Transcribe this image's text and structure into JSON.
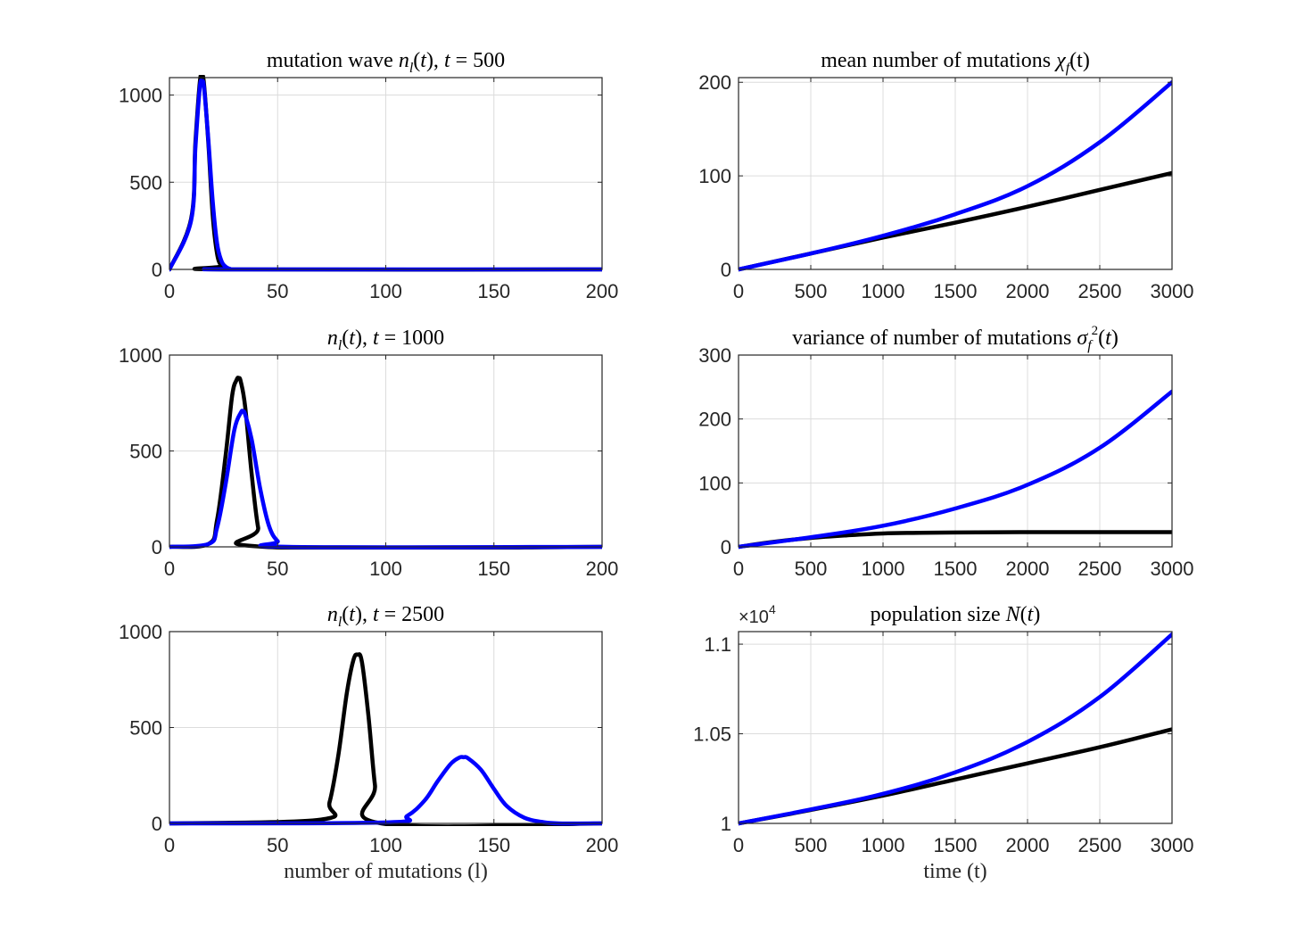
{
  "colors": {
    "series_a": "#000000",
    "series_b": "#0000ff"
  },
  "chart_data": [
    {
      "id": "wave500",
      "type": "line",
      "title_parts": [
        {
          "text": "mutation wave ",
          "style": "normal"
        },
        {
          "text": "n",
          "style": "italic"
        },
        {
          "text": "l",
          "style": "sub"
        },
        {
          "text": "(",
          "style": "normal"
        },
        {
          "text": "t",
          "style": "italic"
        },
        {
          "text": "), ",
          "style": "normal"
        },
        {
          "text": "t",
          "style": "italic"
        },
        {
          "text": " = 500",
          "style": "normal"
        }
      ],
      "xlabel": "",
      "xlim": [
        0,
        200
      ],
      "ylim": [
        0,
        1100
      ],
      "xticks": [
        0,
        50,
        100,
        150,
        200
      ],
      "xtick_labels": [
        "0",
        "50",
        "100",
        "150",
        "200"
      ],
      "yticks": [
        0,
        500,
        1000
      ],
      "ytick_labels": [
        "0",
        "500",
        "1000"
      ],
      "series": [
        {
          "name": "black",
          "color": "#000000",
          "x": [
            0,
            10,
            12,
            14,
            15,
            16,
            18,
            20,
            22,
            24,
            26,
            200
          ],
          "y": [
            0,
            290,
            730,
            1070,
            1110,
            1060,
            720,
            310,
            90,
            20,
            0,
            0
          ]
        },
        {
          "name": "blue",
          "color": "#0000ff",
          "x": [
            0,
            10,
            12,
            14,
            15,
            16,
            18,
            20,
            22,
            24,
            26,
            28,
            30,
            200
          ],
          "y": [
            0,
            280,
            700,
            1040,
            1075,
            1040,
            740,
            390,
            150,
            50,
            15,
            3,
            0,
            0
          ]
        }
      ]
    },
    {
      "id": "mean",
      "type": "line",
      "title_parts": [
        {
          "text": "mean number of mutations ",
          "style": "normal"
        },
        {
          "text": "χ",
          "style": "italic"
        },
        {
          "text": "f",
          "style": "sub"
        },
        {
          "text": "(t)",
          "style": "normal"
        }
      ],
      "xlabel": "",
      "xlim": [
        0,
        3000
      ],
      "ylim": [
        0,
        205
      ],
      "xticks": [
        0,
        500,
        1000,
        1500,
        2000,
        2500,
        3000
      ],
      "xtick_labels": [
        "0",
        "500",
        "1000",
        "1500",
        "2000",
        "2500",
        "3000"
      ],
      "yticks": [
        0,
        100,
        200
      ],
      "ytick_labels": [
        "0",
        "100",
        "200"
      ],
      "series": [
        {
          "name": "black",
          "color": "#000000",
          "x": [
            0,
            500,
            1000,
            1500,
            2000,
            2500,
            3000
          ],
          "y": [
            0,
            17,
            34,
            50,
            67,
            85,
            103
          ]
        },
        {
          "name": "blue",
          "color": "#0000ff",
          "x": [
            0,
            500,
            1000,
            1500,
            2000,
            2500,
            3000
          ],
          "y": [
            0,
            17,
            36,
            59,
            89,
            136,
            200
          ]
        }
      ]
    },
    {
      "id": "wave1000",
      "type": "line",
      "title_parts": [
        {
          "text": "n",
          "style": "italic"
        },
        {
          "text": "l",
          "style": "sub"
        },
        {
          "text": "(",
          "style": "normal"
        },
        {
          "text": "t",
          "style": "italic"
        },
        {
          "text": "), ",
          "style": "normal"
        },
        {
          "text": "t",
          "style": "italic"
        },
        {
          "text": " = 1000",
          "style": "normal"
        }
      ],
      "xlabel": "",
      "xlim": [
        0,
        200
      ],
      "ylim": [
        0,
        1000
      ],
      "xticks": [
        0,
        50,
        100,
        150,
        200
      ],
      "xtick_labels": [
        "0",
        "50",
        "100",
        "150",
        "200"
      ],
      "yticks": [
        0,
        500,
        1000
      ],
      "ytick_labels": [
        "0",
        "500",
        "1000"
      ],
      "series": [
        {
          "name": "black",
          "color": "#000000",
          "x": [
            0,
            18,
            22,
            26,
            29,
            31,
            32,
            33,
            35,
            38,
            41,
            44,
            200
          ],
          "y": [
            0,
            15,
            140,
            480,
            790,
            870,
            880,
            860,
            730,
            380,
            100,
            0,
            0
          ]
        },
        {
          "name": "blue",
          "color": "#0000ff",
          "x": [
            0,
            18,
            22,
            26,
            30,
            33,
            34,
            35,
            38,
            42,
            46,
            50,
            55,
            200
          ],
          "y": [
            0,
            15,
            100,
            330,
            610,
            700,
            705,
            690,
            560,
            300,
            110,
            30,
            0,
            0
          ]
        }
      ]
    },
    {
      "id": "variance",
      "type": "line",
      "title_parts": [
        {
          "text": "variance of number of mutations ",
          "style": "normal"
        },
        {
          "text": "σ",
          "style": "italic"
        },
        {
          "text": "f",
          "style": "sub"
        },
        {
          "text": "2",
          "style": "sup"
        },
        {
          "text": "(",
          "style": "normal"
        },
        {
          "text": "t",
          "style": "italic"
        },
        {
          "text": ")",
          "style": "normal"
        }
      ],
      "xlabel": "",
      "xlim": [
        0,
        3000
      ],
      "ylim": [
        0,
        300
      ],
      "xticks": [
        0,
        500,
        1000,
        1500,
        2000,
        2500,
        3000
      ],
      "xtick_labels": [
        "0",
        "500",
        "1000",
        "1500",
        "2000",
        "2500",
        "3000"
      ],
      "yticks": [
        0,
        100,
        200,
        300
      ],
      "ytick_labels": [
        "0",
        "100",
        "200",
        "300"
      ],
      "series": [
        {
          "name": "black",
          "color": "#000000",
          "x": [
            0,
            250,
            500,
            750,
            1000,
            1250,
            1500,
            2000,
            2500,
            3000
          ],
          "y": [
            0,
            8,
            14,
            18,
            21,
            22,
            22.5,
            23,
            23,
            23
          ]
        },
        {
          "name": "blue",
          "color": "#0000ff",
          "x": [
            0,
            500,
            1000,
            1500,
            2000,
            2500,
            3000
          ],
          "y": [
            0,
            15,
            33,
            60,
            97,
            155,
            243
          ]
        }
      ]
    },
    {
      "id": "wave2500",
      "type": "line",
      "title_parts": [
        {
          "text": "n",
          "style": "italic"
        },
        {
          "text": "l",
          "style": "sub"
        },
        {
          "text": "(",
          "style": "normal"
        },
        {
          "text": "t",
          "style": "italic"
        },
        {
          "text": "), ",
          "style": "normal"
        },
        {
          "text": "t",
          "style": "italic"
        },
        {
          "text": " = 2500",
          "style": "normal"
        }
      ],
      "xlabel": "number of mutations (l)",
      "xlim": [
        0,
        200
      ],
      "ylim": [
        0,
        1000
      ],
      "xticks": [
        0,
        50,
        100,
        150,
        200
      ],
      "xtick_labels": [
        "0",
        "50",
        "100",
        "150",
        "200"
      ],
      "yticks": [
        0,
        500,
        1000
      ],
      "ytick_labels": [
        "0",
        "500",
        "1000"
      ],
      "series": [
        {
          "name": "black",
          "color": "#000000",
          "x": [
            0,
            70,
            74,
            78,
            82,
            85,
            87,
            89,
            92,
            95,
            98,
            200
          ],
          "y": [
            0,
            20,
            110,
            350,
            680,
            850,
            880,
            840,
            560,
            200,
            0,
            0
          ]
        },
        {
          "name": "blue",
          "color": "#0000ff",
          "x": [
            0,
            100,
            110,
            118,
            124,
            130,
            134,
            136,
            138,
            144,
            150,
            156,
            164,
            172,
            180,
            200
          ],
          "y": [
            0,
            5,
            40,
            120,
            220,
            310,
            343,
            345,
            340,
            280,
            180,
            90,
            30,
            8,
            0,
            0
          ]
        }
      ]
    },
    {
      "id": "population",
      "type": "line",
      "title_parts": [
        {
          "text": "population size ",
          "style": "normal"
        },
        {
          "text": "N",
          "style": "italic"
        },
        {
          "text": "(",
          "style": "normal"
        },
        {
          "text": "t",
          "style": "italic"
        },
        {
          "text": ")",
          "style": "normal"
        }
      ],
      "xlabel": "time (t)",
      "exponent_base": "×10",
      "exponent_power": "4",
      "xlim": [
        0,
        3000
      ],
      "ylim": [
        1.0,
        1.107
      ],
      "xticks": [
        0,
        500,
        1000,
        1500,
        2000,
        2500,
        3000
      ],
      "xtick_labels": [
        "0",
        "500",
        "1000",
        "1500",
        "2000",
        "2500",
        "3000"
      ],
      "yticks": [
        1.0,
        1.05,
        1.1
      ],
      "ytick_labels": [
        "1",
        "1.05",
        "1.1"
      ],
      "series": [
        {
          "name": "black",
          "color": "#000000",
          "x": [
            0,
            500,
            1000,
            1500,
            2000,
            2500,
            3000
          ],
          "y": [
            1.0,
            1.0075,
            1.0155,
            1.0245,
            1.0335,
            1.0425,
            1.0525
          ]
        },
        {
          "name": "blue",
          "color": "#0000ff",
          "x": [
            0,
            500,
            1000,
            1500,
            2000,
            2500,
            3000
          ],
          "y": [
            1.0,
            1.0078,
            1.0165,
            1.0285,
            1.0455,
            1.0705,
            1.1055
          ]
        }
      ]
    }
  ]
}
